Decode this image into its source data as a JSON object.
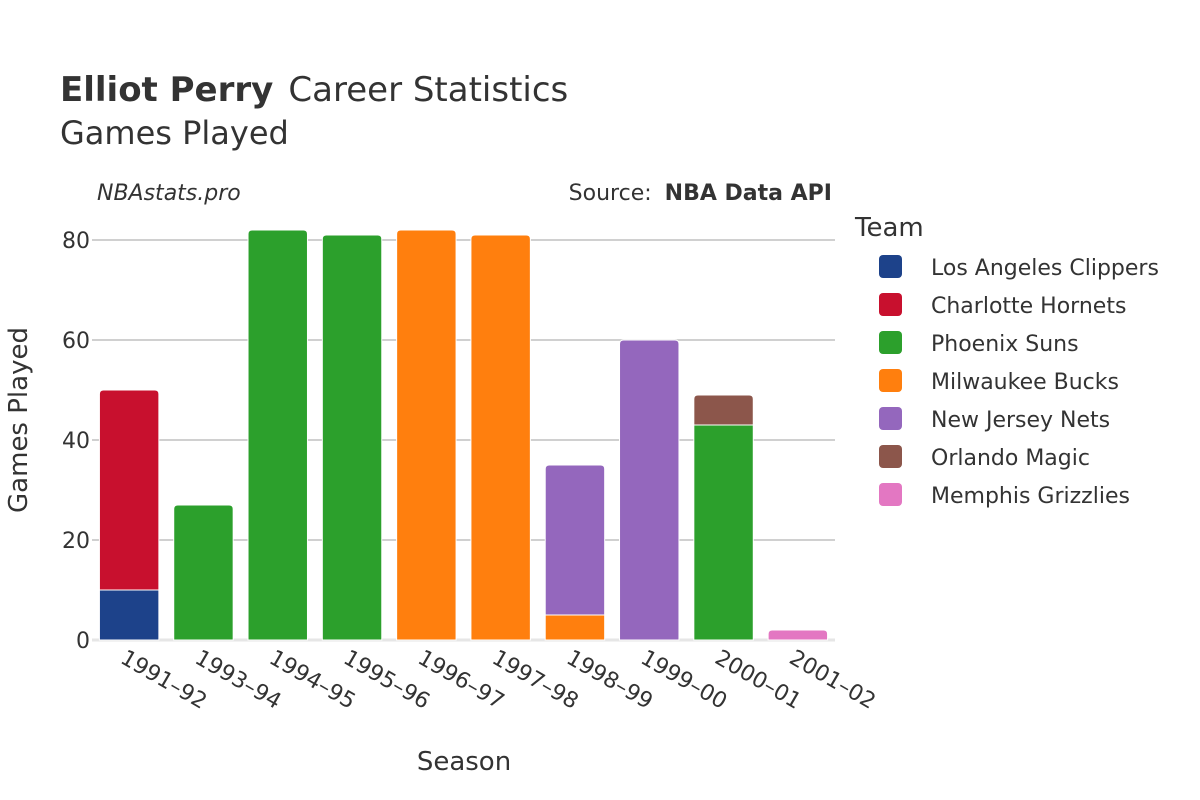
{
  "title": {
    "bold": "Elliot Perry",
    "rest": "Career Statistics",
    "subtitle": "Games Played"
  },
  "credit": "NBAstats.pro",
  "source": {
    "prefix": "Source:",
    "name": "NBA Data API"
  },
  "legend_title": "Team",
  "colors": {
    "Los Angeles Clippers": "#1d428a",
    "Charlotte Hornets": "#c8102e",
    "Phoenix Suns": "#2ca02c",
    "Milwaukee Bucks": "#ff7f0e",
    "New Jersey Nets": "#9467bd",
    "Orlando Magic": "#8c564b",
    "Memphis Grizzlies": "#e377c2"
  },
  "chart_data": {
    "type": "bar",
    "stacked": true,
    "xlabel": "Season",
    "ylabel": "Games Played",
    "ylim": [
      0,
      85
    ],
    "yticks": [
      0,
      20,
      40,
      60,
      80
    ],
    "grid": true,
    "legend_position": "right",
    "categories": [
      "1991–92",
      "1993–94",
      "1994–95",
      "1995–96",
      "1996–97",
      "1997–98",
      "1998–99",
      "1999–00",
      "2000–01",
      "2001–02"
    ],
    "series": [
      {
        "name": "Los Angeles Clippers",
        "values": [
          10,
          0,
          0,
          0,
          0,
          0,
          0,
          0,
          0,
          0
        ]
      },
      {
        "name": "Charlotte Hornets",
        "values": [
          40,
          0,
          0,
          0,
          0,
          0,
          0,
          0,
          0,
          0
        ]
      },
      {
        "name": "Phoenix Suns",
        "values": [
          0,
          27,
          82,
          81,
          0,
          0,
          0,
          0,
          43,
          0
        ]
      },
      {
        "name": "Milwaukee Bucks",
        "values": [
          0,
          0,
          0,
          0,
          82,
          81,
          5,
          0,
          0,
          0
        ]
      },
      {
        "name": "New Jersey Nets",
        "values": [
          0,
          0,
          0,
          0,
          0,
          0,
          30,
          60,
          0,
          0
        ]
      },
      {
        "name": "Orlando Magic",
        "values": [
          0,
          0,
          0,
          0,
          0,
          0,
          0,
          0,
          6,
          0
        ]
      },
      {
        "name": "Memphis Grizzlies",
        "values": [
          0,
          0,
          0,
          0,
          0,
          0,
          0,
          0,
          0,
          2
        ]
      }
    ]
  }
}
